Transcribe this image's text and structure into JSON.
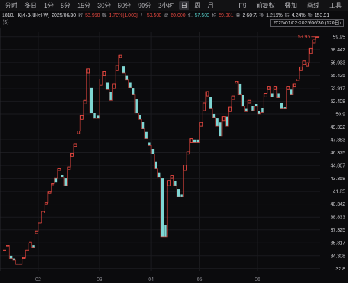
{
  "toolbar": {
    "tabs": [
      "分时",
      "多日",
      "1分",
      "5分",
      "15分",
      "30分",
      "60分",
      "90分",
      "2小时",
      "日",
      "周",
      "月"
    ],
    "active_tab": "日",
    "right": [
      "F9",
      "前复权",
      "叠加",
      "画线",
      "工具"
    ]
  },
  "quote": {
    "symbol": "1810.HK[小米集团-W]",
    "date": "2025/06/30",
    "close_label": "收",
    "close": "58.950",
    "change_label": "幅",
    "change": "1.70%[1.000]",
    "open_label": "开",
    "open": "59.500",
    "high_label": "高",
    "high": "60.000",
    "low_label": "低",
    "low": "57.500",
    "avg_label": "均",
    "avg": "59.081",
    "vol_label": "量",
    "vol": "2.60亿",
    "turnover_label": "换",
    "turnover": "1.215%",
    "amp_label": "振",
    "amp": "4.24%",
    "amt_label": "额",
    "amt": "153.91"
  },
  "range_row": {
    "left_label": "(5)",
    "range": "2025/01/02-2025/06/30 (120日)"
  },
  "colors": {
    "up": "#e2473f",
    "down": "#7fd6d3",
    "axis_text": "#c8c8cc",
    "grid": "#1b1b1f"
  },
  "chart_data": {
    "type": "line",
    "style": "price-step (renko-like boxes)",
    "ylim": [
      32.5,
      60.5
    ],
    "yticks": [
      32.8,
      34.308,
      35.817,
      37.325,
      38.833,
      40.342,
      41.85,
      43.358,
      44.867,
      46.375,
      47.883,
      49.392,
      50.9,
      52.408,
      53.917,
      55.425,
      56.933,
      58.442,
      59.95
    ],
    "xlabels": [
      "02",
      "03",
      "04",
      "05",
      "06"
    ],
    "xlabel_index": [
      11,
      30,
      46,
      61,
      79
    ],
    "max_marker": "59.95",
    "steps": [
      {
        "c": 34.9,
        "p": 35.0,
        "d": "up"
      },
      {
        "c": 35.5,
        "p": 35.5,
        "d": "up"
      },
      {
        "c": 34.3,
        "p": 34.0,
        "d": "down"
      },
      {
        "c": 34.0,
        "p": 33.8,
        "d": "down"
      },
      {
        "c": 33.4,
        "p": 33.3,
        "d": "down"
      },
      {
        "c": 33.4,
        "p": 33.3,
        "d": "down"
      },
      {
        "c": 34.0,
        "p": 34.1,
        "d": "up"
      },
      {
        "c": 35.0,
        "p": 35.0,
        "d": "up"
      },
      {
        "c": 35.9,
        "p": 35.8,
        "d": "up"
      },
      {
        "c": 35.5,
        "p": 35.3,
        "d": "down"
      },
      {
        "c": 36.9,
        "p": 37.2,
        "d": "up"
      },
      {
        "c": 38.2,
        "p": 38.2,
        "d": "up"
      },
      {
        "c": 39.3,
        "p": 39.5,
        "d": "up"
      },
      {
        "c": 40.3,
        "p": 40.5,
        "d": "up"
      },
      {
        "c": 41.6,
        "p": 41.8,
        "d": "up"
      },
      {
        "c": 42.6,
        "p": 42.8,
        "d": "up"
      },
      {
        "c": 42.9,
        "p": 43.4,
        "d": "down"
      },
      {
        "c": 44.3,
        "p": 44.5,
        "d": "up"
      },
      {
        "c": 43.8,
        "p": 43.5,
        "d": "down"
      },
      {
        "c": 43.4,
        "p": 42.5,
        "d": "down"
      },
      {
        "c": 44.4,
        "p": 44.7,
        "d": "up"
      },
      {
        "c": 45.9,
        "p": 46.3,
        "d": "up"
      },
      {
        "c": 47.1,
        "p": 47.4,
        "d": "up"
      },
      {
        "c": 48.6,
        "p": 48.9,
        "d": "up"
      },
      {
        "c": 50.3,
        "p": 50.7,
        "d": "up"
      },
      {
        "c": 52.1,
        "p": 52.5,
        "d": "up"
      },
      {
        "c": 55.7,
        "p": 56.2,
        "d": "up"
      },
      {
        "c": 54.0,
        "p": 51.0,
        "d": "down"
      },
      {
        "c": 51.0,
        "p": 50.4,
        "d": "down"
      },
      {
        "c": 50.7,
        "p": 50.4,
        "d": "down"
      },
      {
        "c": 54.3,
        "p": 55.0,
        "d": "up"
      },
      {
        "c": 55.4,
        "p": 55.9,
        "d": "up"
      },
      {
        "c": 54.6,
        "p": 53.8,
        "d": "down"
      },
      {
        "c": 53.5,
        "p": 52.5,
        "d": "down"
      },
      {
        "c": 53.9,
        "p": 54.4,
        "d": "up"
      },
      {
        "c": 56.0,
        "p": 56.6,
        "d": "up"
      },
      {
        "c": 57.5,
        "p": 57.8,
        "d": "up"
      },
      {
        "c": 56.5,
        "p": 55.7,
        "d": "down"
      },
      {
        "c": 55.4,
        "p": 54.9,
        "d": "down"
      },
      {
        "c": 54.6,
        "p": 54.0,
        "d": "down"
      },
      {
        "c": 53.9,
        "p": 53.2,
        "d": "down"
      },
      {
        "c": 52.6,
        "p": 51.0,
        "d": "down"
      },
      {
        "c": 50.8,
        "p": 50.3,
        "d": "down"
      },
      {
        "c": 50.0,
        "p": 49.2,
        "d": "down"
      },
      {
        "c": 48.8,
        "p": 48.0,
        "d": "down"
      },
      {
        "c": 47.6,
        "p": 47.2,
        "d": "down"
      },
      {
        "c": 46.8,
        "p": 46.2,
        "d": "down"
      },
      {
        "c": 45.3,
        "p": 44.5,
        "d": "down"
      },
      {
        "c": 44.0,
        "p": 43.5,
        "d": "down"
      },
      {
        "c": 43.4,
        "p": 36.5,
        "d": "down"
      },
      {
        "c": 37.9,
        "p": 36.5,
        "d": "down"
      },
      {
        "c": 42.5,
        "p": 43.1,
        "d": "up"
      },
      {
        "c": 43.4,
        "p": 43.7,
        "d": "up"
      },
      {
        "c": 43.0,
        "p": 42.5,
        "d": "down"
      },
      {
        "c": 42.1,
        "p": 41.2,
        "d": "down"
      },
      {
        "c": 41.5,
        "p": 41.2,
        "d": "down"
      },
      {
        "c": 44.3,
        "p": 44.9,
        "d": "up"
      },
      {
        "c": 46.2,
        "p": 46.5,
        "d": "up"
      },
      {
        "c": 47.6,
        "p": 48.0,
        "d": "up"
      },
      {
        "c": 47.9,
        "p": 47.6,
        "d": "down"
      },
      {
        "c": 47.9,
        "p": 47.6,
        "d": "down"
      },
      {
        "c": 49.5,
        "p": 49.9,
        "d": "up"
      },
      {
        "c": 51.3,
        "p": 52.2,
        "d": "up"
      },
      {
        "c": 53.0,
        "p": 53.5,
        "d": "up"
      },
      {
        "c": 52.9,
        "p": 51.5,
        "d": "down"
      },
      {
        "c": 50.9,
        "p": 50.5,
        "d": "down"
      },
      {
        "c": 50.4,
        "p": 49.5,
        "d": "down"
      },
      {
        "c": 49.9,
        "p": 48.3,
        "d": "down"
      },
      {
        "c": 50.1,
        "p": 50.6,
        "d": "up"
      },
      {
        "c": 50.6,
        "p": 49.5,
        "d": "down"
      },
      {
        "c": 51.2,
        "p": 51.7,
        "d": "up"
      },
      {
        "c": 52.6,
        "p": 53.0,
        "d": "up"
      },
      {
        "c": 54.5,
        "p": 54.7,
        "d": "up"
      },
      {
        "c": 54.4,
        "p": 53.2,
        "d": "down"
      },
      {
        "c": 53.1,
        "p": 51.8,
        "d": "down"
      },
      {
        "c": 51.5,
        "p": 51.2,
        "d": "down"
      },
      {
        "c": 52.2,
        "p": 52.5,
        "d": "up"
      },
      {
        "c": 51.8,
        "p": 51.3,
        "d": "down"
      },
      {
        "c": 52.1,
        "p": 51.8,
        "d": "down"
      },
      {
        "c": 51.3,
        "p": 50.9,
        "d": "down"
      },
      {
        "c": 51.6,
        "p": 51.1,
        "d": "down"
      },
      {
        "c": 52.9,
        "p": 53.3,
        "d": "up"
      },
      {
        "c": 53.8,
        "p": 54.1,
        "d": "up"
      },
      {
        "c": 53.3,
        "p": 52.9,
        "d": "down"
      },
      {
        "c": 53.8,
        "p": 54.1,
        "d": "up"
      },
      {
        "c": 53.3,
        "p": 52.8,
        "d": "down"
      },
      {
        "c": 52.2,
        "p": 51.5,
        "d": "down"
      },
      {
        "c": 51.7,
        "p": 51.5,
        "d": "down"
      },
      {
        "c": 53.8,
        "p": 54.1,
        "d": "up"
      },
      {
        "c": 53.8,
        "p": 53.2,
        "d": "down"
      },
      {
        "c": 54.1,
        "p": 54.4,
        "d": "up"
      },
      {
        "c": 54.8,
        "p": 55.0,
        "d": "up"
      },
      {
        "c": 56.0,
        "p": 56.4,
        "d": "up"
      },
      {
        "c": 56.7,
        "p": 57.1,
        "d": "up"
      },
      {
        "c": 56.5,
        "p": 56.9,
        "d": "up"
      },
      {
        "c": 58.0,
        "p": 58.6,
        "d": "up"
      },
      {
        "c": 59.2,
        "p": 59.6,
        "d": "up"
      },
      {
        "c": 59.95,
        "p": 59.95,
        "d": "up"
      }
    ]
  }
}
